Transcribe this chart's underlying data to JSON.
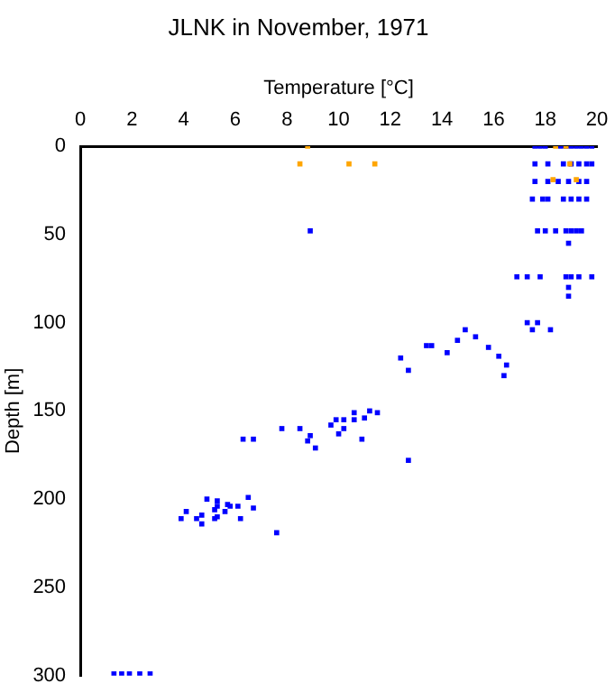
{
  "chart_data": {
    "type": "scatter",
    "title": "JLNK in November, 1971",
    "xlabel": "Temperature [°C]",
    "ylabel": "Depth [m]",
    "xlim": [
      0,
      20
    ],
    "xticks": [
      0,
      2,
      4,
      6,
      8,
      10,
      12,
      14,
      16,
      18,
      20
    ],
    "ylim": [
      300,
      0
    ],
    "yticks": [
      0,
      50,
      100,
      150,
      200,
      250,
      300
    ],
    "grid": false,
    "marker": "square",
    "legend": false,
    "series": [
      {
        "color": "#0000ff",
        "x": [
          17.6,
          17.8,
          18.0,
          18.6,
          18.8,
          19.0,
          19.2,
          19.4,
          19.6,
          19.8,
          17.6,
          18.1,
          18.7,
          19.0,
          19.3,
          19.6,
          19.8,
          17.6,
          18.1,
          18.5,
          18.9,
          19.3,
          19.6,
          17.5,
          17.9,
          18.1,
          18.7,
          19.0,
          19.3,
          19.6,
          8.9,
          17.7,
          18.0,
          18.4,
          18.8,
          19.0,
          19.2,
          19.4,
          18.9,
          16.9,
          17.3,
          17.8,
          18.8,
          19.0,
          19.3,
          19.8,
          18.9,
          18.9,
          17.3,
          17.5,
          17.7,
          18.2,
          14.9,
          13.4,
          12.4,
          12.7,
          12.7,
          13.6,
          14.2,
          14.6,
          15.3,
          15.8,
          16.2,
          16.5,
          16.4,
          7.8,
          8.5,
          8.9,
          8.8,
          9.1,
          6.3,
          6.7,
          9.7,
          9.9,
          10.2,
          10.2,
          10.0,
          10.6,
          10.6,
          11.0,
          11.2,
          11.5,
          10.9,
          4.9,
          4.1,
          3.9,
          4.5,
          4.7,
          4.7,
          5.2,
          5.3,
          5.3,
          5.6,
          5.7,
          5.8,
          6.1,
          5.3,
          5.2,
          6.2,
          6.5,
          6.7,
          7.6,
          1.3,
          1.6,
          1.9,
          2.3,
          2.7
        ],
        "values": [
          0,
          0,
          0,
          0,
          0,
          0,
          0,
          0,
          0,
          0,
          10,
          10,
          10,
          10,
          10,
          10,
          10,
          20,
          20,
          20,
          20,
          20,
          20,
          30,
          30,
          30,
          30,
          30,
          30,
          30,
          48,
          48,
          48,
          48,
          48,
          48,
          48,
          48,
          55,
          74,
          74,
          74,
          74,
          74,
          74,
          74,
          80,
          85,
          100,
          104,
          100,
          104,
          104,
          113,
          120,
          127,
          178,
          113,
          117,
          110,
          108,
          114,
          119,
          124,
          130,
          160,
          160,
          164,
          167,
          171,
          166,
          166,
          158,
          155,
          155,
          160,
          163,
          151,
          155,
          154,
          150,
          151,
          166,
          200,
          207,
          211,
          211,
          209,
          214,
          206,
          201,
          204,
          207,
          203,
          204,
          204,
          210,
          211,
          211,
          199,
          205,
          219,
          299,
          299,
          299,
          299,
          299
        ]
      },
      {
        "color": "#ffa500",
        "x": [
          8.8,
          8.5,
          10.4,
          11.4,
          18.4,
          18.8,
          18.95,
          18.3,
          19.2
        ],
        "values": [
          0,
          10,
          10,
          10,
          0,
          0,
          10,
          19,
          19
        ]
      }
    ]
  }
}
